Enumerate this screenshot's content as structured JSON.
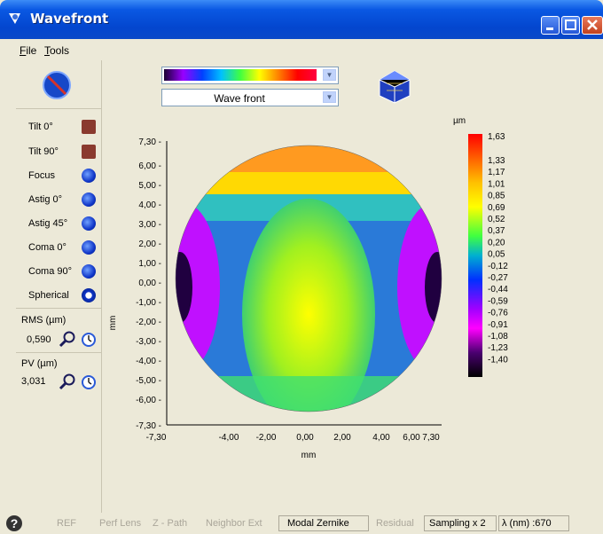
{
  "window": {
    "title": "Wavefront"
  },
  "menu": [
    {
      "underline": "F",
      "rest": "ile"
    },
    {
      "underline": "T",
      "rest": "ools"
    }
  ],
  "sidebar": {
    "items": [
      {
        "label": "Tilt 0°",
        "icon": "tilt-icon"
      },
      {
        "label": "Tilt 90°",
        "icon": "tilt-icon"
      },
      {
        "label": "Focus",
        "icon": "focus-icon"
      },
      {
        "label": "Astig 0°",
        "icon": "astig-icon"
      },
      {
        "label": "Astig 45°",
        "icon": "astig-icon"
      },
      {
        "label": "Coma 0°",
        "icon": "coma-icon"
      },
      {
        "label": "Coma 90°",
        "icon": "coma-icon"
      },
      {
        "label": "Spherical",
        "icon": "spherical-icon"
      }
    ],
    "rms_label": "RMS (µm)",
    "rms_value": "0,590",
    "pv_label": "PV (µm)",
    "pv_value": "3,031"
  },
  "toolbar": {
    "display_mode": "Wave front"
  },
  "plot": {
    "y_unit": "mm",
    "x_unit": "mm",
    "y_ticks": [
      "7,30",
      "6,00",
      "5,00",
      "4,00",
      "3,00",
      "2,00",
      "1,00",
      "0,00",
      "-1,00",
      "-2,00",
      "-3,00",
      "-4,00",
      "-5,00",
      "-6,00",
      "-7,30"
    ],
    "x_ticks": [
      "-7,30",
      "-4,00",
      "-2,00",
      "0,00",
      "2,00",
      "4,00",
      "6,00",
      "7,30"
    ]
  },
  "colorbar": {
    "unit": "µm",
    "labels": [
      "1,63",
      "1,33",
      "1,17",
      "1,01",
      "0,85",
      "0,69",
      "0,52",
      "0,37",
      "0,20",
      "0,05",
      "-0,12",
      "-0,27",
      "-0,44",
      "-0,59",
      "-0,76",
      "-0,91",
      "-1,08",
      "-1,23",
      "-1,40"
    ]
  },
  "statusbar": {
    "items": [
      "REF",
      "Perf Lens",
      "Z - Path",
      "Neighbor Ext",
      "Modal Zernike",
      "Residual",
      "Sampling x 2",
      "λ (nm) :670"
    ]
  },
  "colors": {
    "title_blue": "#0a58e3",
    "face": "#ece9d8"
  }
}
